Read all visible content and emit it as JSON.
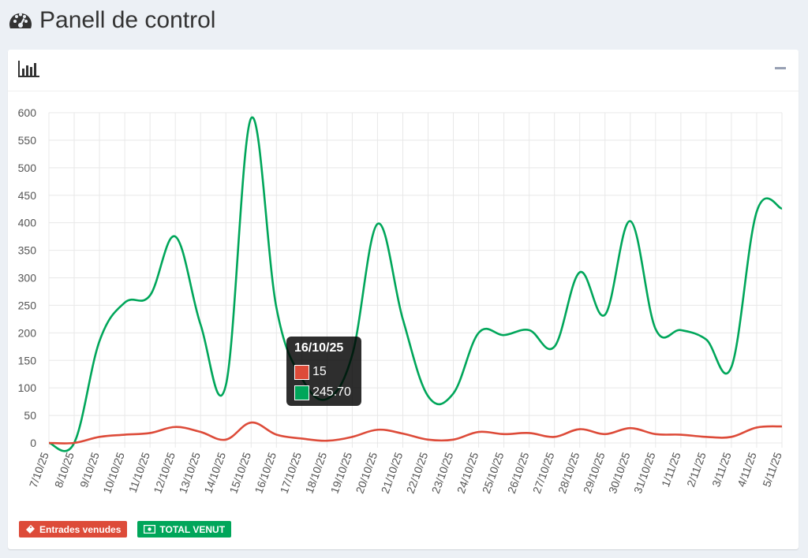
{
  "page": {
    "title": "Panell de control",
    "icon": "dashboard-gauge-icon"
  },
  "card": {
    "header_icon": "bar-chart-icon",
    "collapse_icon": "minus-icon"
  },
  "colors": {
    "red": "#dd4b39",
    "green": "#00a65a",
    "grid": "#e8e8e8",
    "axis_text": "#555555"
  },
  "tooltip": {
    "date": "16/10/25",
    "entrades": "15",
    "total": "245.70"
  },
  "legend": {
    "entrades_label": "Entrades venudes",
    "total_label": "TOTAL VENUT"
  },
  "chart_data": {
    "type": "line",
    "categories": [
      "7/10/25",
      "8/10/25",
      "9/10/25",
      "10/10/25",
      "11/10/25",
      "12/10/25",
      "13/10/25",
      "14/10/25",
      "15/10/25",
      "16/10/25",
      "17/10/25",
      "18/10/25",
      "19/10/25",
      "20/10/25",
      "21/10/25",
      "22/10/25",
      "23/10/25",
      "24/10/25",
      "25/10/25",
      "26/10/25",
      "27/10/25",
      "28/10/25",
      "29/10/25",
      "30/10/25",
      "31/10/25",
      "1/11/25",
      "2/11/25",
      "3/11/25",
      "4/11/25",
      "5/11/25"
    ],
    "series": [
      {
        "name": "Entrades venudes",
        "color": "#dd4b39",
        "values": [
          0,
          0,
          11,
          15,
          18,
          29,
          20,
          6,
          37,
          15,
          8,
          4,
          11,
          24,
          17,
          6,
          6,
          20,
          16,
          18,
          11,
          25,
          16,
          27,
          16,
          15,
          11,
          11,
          28,
          30
        ]
      },
      {
        "name": "TOTAL VENUT",
        "color": "#00a65a",
        "values": [
          0,
          0,
          185,
          255,
          268,
          375,
          215,
          105,
          590,
          245.7,
          118,
          80,
          160,
          398,
          225,
          85,
          90,
          200,
          196,
          205,
          175,
          310,
          233,
          403,
          207,
          205,
          188,
          138,
          420,
          426
        ]
      }
    ],
    "title": "",
    "xlabel": "",
    "ylabel": "",
    "ylim": [
      0,
      600
    ],
    "yticks": [
      0,
      50,
      100,
      150,
      200,
      250,
      300,
      350,
      400,
      450,
      500,
      550,
      600
    ],
    "ytick_labels": [
      "0",
      "50",
      "100",
      "150",
      "200",
      "250",
      "300",
      "350",
      "400",
      "450",
      "500",
      "550",
      "600"
    ],
    "grid": true
  }
}
